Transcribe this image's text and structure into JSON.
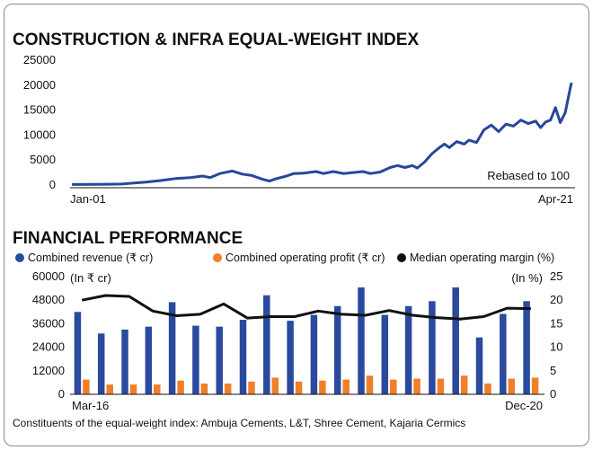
{
  "chart_data": [
    {
      "type": "line",
      "title": "CONSTRUCTION & INFRA EQUAL-WEIGHT INDEX",
      "annotation": "Rebased to 100",
      "x_labels": [
        "Jan-01",
        "Apr-21"
      ],
      "y_ticks": [
        0,
        5000,
        10000,
        15000,
        20000,
        25000
      ],
      "y_tick_labels": [
        "0",
        "5000",
        "10000",
        "15000",
        "20000",
        "25000"
      ],
      "ylim": [
        0,
        25000
      ],
      "xlim": [
        2001.0,
        2021.25
      ],
      "color": "#27479a",
      "grid": false,
      "series": [
        {
          "x": [
            2001.0,
            2002.0,
            2003.0,
            2004.0,
            2004.6,
            2005.2,
            2005.8,
            2006.3,
            2006.6,
            2007.0,
            2007.5,
            2007.9,
            2008.3,
            2008.7,
            2009.0,
            2009.3,
            2009.7,
            2010.0,
            2010.4,
            2010.9,
            2011.2,
            2011.6,
            2012.0,
            2012.4,
            2012.8,
            2013.1,
            2013.5,
            2013.9,
            2014.2,
            2014.5,
            2014.8,
            2015.0,
            2015.3,
            2015.6,
            2015.9,
            2016.1,
            2016.3,
            2016.6,
            2016.9,
            2017.1,
            2017.4,
            2017.7,
            2018.0,
            2018.3,
            2018.6,
            2018.9,
            2019.2,
            2019.5,
            2019.8,
            2020.0,
            2020.2,
            2020.4,
            2020.6,
            2020.8,
            2021.0,
            2021.15,
            2021.25
          ],
          "y": [
            100,
            120,
            200,
            600,
            900,
            1300,
            1500,
            1800,
            1500,
            2300,
            2800,
            2200,
            1900,
            1200,
            800,
            1300,
            1800,
            2300,
            2400,
            2700,
            2300,
            2700,
            2300,
            2500,
            2700,
            2300,
            2600,
            3500,
            3900,
            3500,
            3900,
            3400,
            4600,
            6300,
            7500,
            8200,
            7500,
            8700,
            8200,
            9000,
            8500,
            11000,
            12000,
            10700,
            12200,
            11800,
            13000,
            12300,
            12800,
            11500,
            12600,
            13000,
            15500,
            12500,
            14500,
            18200,
            20500
          ]
        }
      ]
    },
    {
      "type": "bar",
      "title": "FINANCIAL PERFORMANCE",
      "x_labels": [
        "Mar-16",
        "Dec-20"
      ],
      "ylabel_left": "(In ₹ cr)",
      "ylabel_right": "(In %)",
      "y_left_ticks": [
        0,
        12000,
        24000,
        36000,
        48000,
        60000
      ],
      "y_left_tick_labels": [
        "0",
        "12000",
        "24000",
        "36000",
        "48000",
        "60000"
      ],
      "y_right_ticks": [
        0,
        5,
        10,
        15,
        20,
        25
      ],
      "y_right_tick_labels": [
        "0",
        "5",
        "10",
        "15",
        "20",
        "25"
      ],
      "ylim_left": [
        0,
        60000
      ],
      "ylim_right": [
        0,
        25
      ],
      "legend_position": "top",
      "grid": false,
      "series": [
        {
          "name": "Combined revenue (₹ cr)",
          "kind": "bar",
          "axis": "left",
          "color": "#2a4a9e",
          "values": [
            42000,
            31000,
            33000,
            34500,
            47000,
            35000,
            34500,
            38000,
            50500,
            37500,
            40500,
            45000,
            54500,
            40500,
            45000,
            47500,
            54500,
            29000,
            41000,
            47500
          ]
        },
        {
          "name": "Combined operating profit (₹ cr)",
          "kind": "bar",
          "axis": "left",
          "color": "#f07f2a",
          "values": [
            7500,
            5000,
            5000,
            5000,
            7000,
            5500,
            5500,
            6500,
            8500,
            6500,
            7000,
            7500,
            9500,
            7500,
            8000,
            8000,
            9500,
            5500,
            8000,
            8500
          ]
        },
        {
          "name": "Median operating margin (%)",
          "kind": "line",
          "axis": "right",
          "color": "#111111",
          "values": [
            20.0,
            21.0,
            20.8,
            17.7,
            16.7,
            17.0,
            19.2,
            16.2,
            16.5,
            16.5,
            17.7,
            17.0,
            16.8,
            17.8,
            16.8,
            16.3,
            16.0,
            16.5,
            18.3,
            18.2
          ]
        }
      ]
    }
  ],
  "footnote": "Constituents of the equal-weight index: Ambuja Cements, L&T, Shree Cement, Kajaria Cermics"
}
